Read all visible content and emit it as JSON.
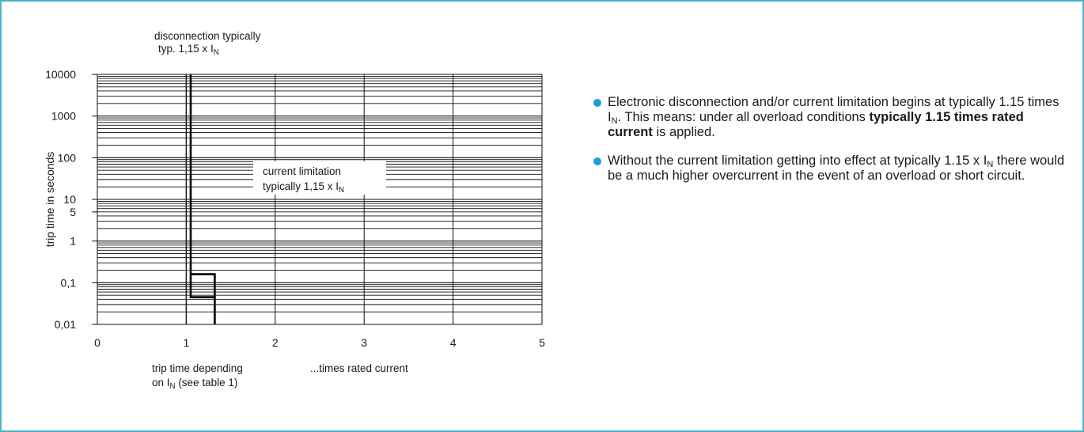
{
  "accent_color": "#1a9fd6",
  "frame_color": "#4db3d3",
  "chart_data": {
    "type": "line",
    "y_scale": "log",
    "ylim": [
      0.01,
      10000
    ],
    "xlim": [
      0,
      5
    ],
    "ylabel": "trip time in seconds",
    "y_ticks": [
      {
        "value": 10000,
        "label": "10000"
      },
      {
        "value": 1000,
        "label": "1000"
      },
      {
        "value": 100,
        "label": "100"
      },
      {
        "value": 10,
        "label": "10"
      },
      {
        "value": 5,
        "label": "5"
      },
      {
        "value": 1,
        "label": "1"
      },
      {
        "value": 0.1,
        "label": "0,1"
      },
      {
        "value": 0.01,
        "label": "0,01"
      }
    ],
    "x_ticks": [
      {
        "value": 0,
        "label": "0"
      },
      {
        "value": 1,
        "label": "1"
      },
      {
        "value": 2,
        "label": "2"
      },
      {
        "value": 3,
        "label": "3"
      },
      {
        "value": 4,
        "label": "4"
      },
      {
        "value": 5,
        "label": "5"
      }
    ],
    "grid": true,
    "series": [
      {
        "values": [
          [
            1.05,
            10000
          ],
          [
            1.05,
            0.045
          ],
          [
            1.32,
            0.045
          ],
          [
            1.32,
            0.01
          ]
        ]
      },
      {
        "values": [
          [
            1.05,
            0.16
          ],
          [
            1.32,
            0.16
          ],
          [
            1.32,
            0.045
          ]
        ]
      }
    ],
    "reference_line": {
      "x": 1.0,
      "y_from": 0.01,
      "y_to": 10000
    },
    "annotations": {
      "top_label": {
        "line1": "disconnection typically",
        "line2_main": "typ. 1,15 x I",
        "line2_sub": "N"
      },
      "box_label": {
        "line1": "current limitation",
        "line2_main": "typically  1,15 x I",
        "line2_sub": "N"
      },
      "bottom_left": {
        "line1": "trip time depending",
        "line2_pre": "on I",
        "line2_sub": "N",
        "line2_post": " (see table 1)"
      },
      "bottom_right": "...times rated current"
    }
  },
  "bullets": [
    {
      "parts": [
        {
          "t": "Electronic disconnection and/or current limitation begins at typically 1.15 times I"
        },
        {
          "t": "N",
          "sub": true
        },
        {
          "t": ". This means: under all overload conditions "
        },
        {
          "t": "typically 1.15 times rated current",
          "bold": true
        },
        {
          "t": " is applied."
        }
      ]
    },
    {
      "parts": [
        {
          "t": "Without the current limitation getting into effect at typically 1.15 x I"
        },
        {
          "t": "N",
          "sub": true
        },
        {
          "t": " there would be a much higher overcurrent in the event of an overload or short circuit."
        }
      ]
    }
  ]
}
